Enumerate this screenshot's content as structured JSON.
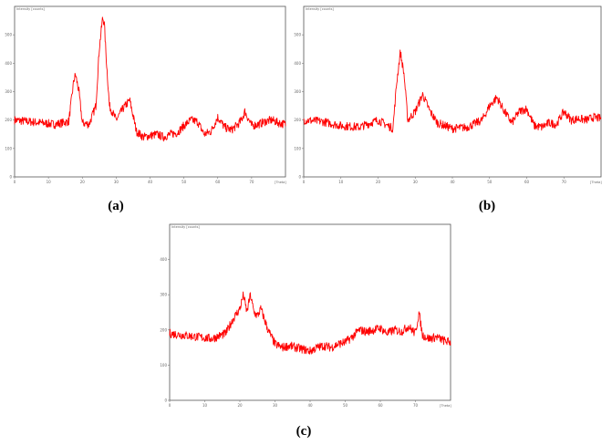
{
  "chart_data": [
    {
      "type": "line",
      "caption": "(a)",
      "xlabel": "[Theta]",
      "ylabel": "Intensity [counts]",
      "xlim": [
        0,
        80
      ],
      "ylim": [
        0,
        600
      ],
      "xticks": [
        "0",
        "10",
        "20",
        "30",
        "40",
        "50",
        "60",
        "70"
      ],
      "yticks": [
        "0",
        "100",
        "200",
        "300",
        "400",
        "500"
      ],
      "series": [
        {
          "x": [
            0,
            4,
            8,
            12,
            16,
            17.5,
            18,
            19,
            20,
            22,
            24,
            25,
            26,
            26.5,
            27,
            28,
            30,
            32,
            34,
            36,
            38,
            40,
            42,
            44,
            46,
            48,
            50,
            52,
            54,
            56,
            58,
            60,
            62,
            64,
            66,
            67,
            68,
            70,
            72,
            74,
            76,
            78,
            80
          ],
          "y": [
            200,
            195,
            190,
            185,
            195,
            340,
            360,
            300,
            190,
            185,
            250,
            450,
            560,
            540,
            430,
            250,
            200,
            240,
            270,
            160,
            140,
            145,
            150,
            140,
            150,
            155,
            180,
            200,
            195,
            150,
            160,
            210,
            175,
            165,
            185,
            200,
            230,
            180,
            185,
            195,
            200,
            190,
            185
          ]
        }
      ]
    },
    {
      "type": "line",
      "caption": "(b)",
      "xlabel": "[Theta]",
      "ylabel": "Intensity [counts]",
      "xlim": [
        0,
        80
      ],
      "ylim": [
        0,
        600
      ],
      "xticks": [
        "0",
        "10",
        "20",
        "30",
        "40",
        "50",
        "60",
        "70"
      ],
      "yticks": [
        "0",
        "100",
        "200",
        "300",
        "400",
        "500"
      ],
      "series": [
        {
          "x": [
            0,
            5,
            10,
            15,
            18,
            20,
            24,
            25,
            26,
            27,
            28,
            30,
            32,
            34,
            36,
            38,
            40,
            44,
            48,
            50,
            52,
            54,
            56,
            58,
            60,
            62,
            64,
            66,
            68,
            70,
            72,
            74,
            76,
            78,
            80
          ],
          "y": [
            200,
            195,
            180,
            175,
            190,
            200,
            170,
            330,
            440,
            360,
            200,
            230,
            290,
            230,
            190,
            180,
            170,
            175,
            200,
            250,
            280,
            230,
            190,
            230,
            240,
            180,
            175,
            190,
            185,
            230,
            200,
            205,
            200,
            210,
            205
          ]
        }
      ]
    },
    {
      "type": "line",
      "caption": "(c)",
      "xlabel": "[Theta]",
      "ylabel": "Intensity [counts]",
      "xlim": [
        0,
        80
      ],
      "ylim": [
        0,
        500
      ],
      "xticks": [
        "0",
        "10",
        "20",
        "30",
        "40",
        "50",
        "60",
        "70"
      ],
      "yticks": [
        "0",
        "100",
        "200",
        "300",
        "400"
      ],
      "series": [
        {
          "x": [
            0,
            4,
            8,
            12,
            16,
            18,
            20,
            21,
            22,
            23,
            24,
            25,
            26,
            27,
            28,
            29,
            30,
            32,
            34,
            36,
            38,
            40,
            42,
            44,
            46,
            48,
            50,
            52,
            54,
            56,
            58,
            60,
            62,
            64,
            66,
            68,
            70,
            71,
            72,
            74,
            76,
            78,
            80
          ],
          "y": [
            190,
            185,
            180,
            175,
            190,
            230,
            260,
            300,
            250,
            300,
            250,
            240,
            260,
            230,
            200,
            180,
            160,
            150,
            155,
            150,
            145,
            140,
            150,
            155,
            150,
            160,
            165,
            180,
            200,
            195,
            200,
            205,
            190,
            200,
            195,
            210,
            190,
            250,
            185,
            175,
            180,
            170,
            165
          ]
        }
      ]
    }
  ]
}
